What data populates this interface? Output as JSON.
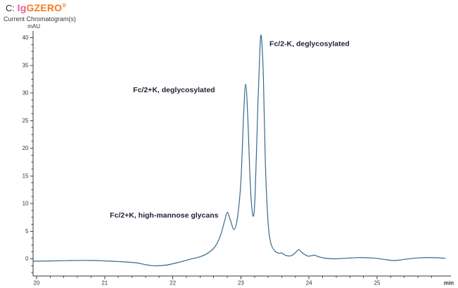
{
  "header": {
    "prefix": "C:",
    "logo": {
      "part1": "Ig",
      "part2": "GZERO",
      "reg": "®"
    },
    "subtitle": "Current Chromatogram(s)"
  },
  "colors": {
    "curve": "#35698c",
    "axis": "#3a3a3a",
    "tick_label": "#333333",
    "annotation": "#1d2433",
    "logo_pink": "#ee59a1",
    "logo_orange": "#f47b20"
  },
  "chart_data": {
    "type": "line",
    "title": "Current Chromatogram(s)",
    "y_unit_label": "mAU",
    "x_unit_label": "min",
    "xlim": [
      20,
      26.05
    ],
    "ylim": [
      -3.1,
      41.2
    ],
    "x_major_ticks": [
      20,
      21,
      22,
      23,
      24,
      25
    ],
    "x_minor_step": 0.2,
    "y_major_ticks": [
      0,
      5,
      10,
      15,
      20,
      25,
      30,
      35,
      40
    ],
    "y_minor_step": 1.25,
    "grid": false,
    "legend": "none",
    "series": [
      {
        "name": "Current Chromatogram",
        "color": "#35698c",
        "points": [
          [
            19.95,
            -0.45
          ],
          [
            20.2,
            -0.4
          ],
          [
            20.5,
            -0.32
          ],
          [
            20.8,
            -0.3
          ],
          [
            21.0,
            -0.38
          ],
          [
            21.2,
            -0.5
          ],
          [
            21.45,
            -0.72
          ],
          [
            21.7,
            -1.25
          ],
          [
            21.9,
            -1.15
          ],
          [
            22.1,
            -0.6
          ],
          [
            22.25,
            -0.1
          ],
          [
            22.38,
            0.3
          ],
          [
            22.5,
            0.9
          ],
          [
            22.62,
            2.2
          ],
          [
            22.7,
            4.2
          ],
          [
            22.76,
            6.8
          ],
          [
            22.8,
            8.4
          ],
          [
            22.84,
            7.2
          ],
          [
            22.9,
            5.3
          ],
          [
            22.95,
            7.5
          ],
          [
            23.0,
            14.0
          ],
          [
            23.04,
            26.0
          ],
          [
            23.07,
            31.6
          ],
          [
            23.1,
            26.0
          ],
          [
            23.14,
            13.0
          ],
          [
            23.18,
            7.7
          ],
          [
            23.21,
            12.0
          ],
          [
            23.25,
            28.0
          ],
          [
            23.28,
            38.0
          ],
          [
            23.3,
            40.2
          ],
          [
            23.33,
            33.0
          ],
          [
            23.36,
            17.0
          ],
          [
            23.4,
            6.5
          ],
          [
            23.44,
            2.8
          ],
          [
            23.5,
            1.4
          ],
          [
            23.56,
            1.0
          ],
          [
            23.6,
            1.05
          ],
          [
            23.66,
            0.6
          ],
          [
            23.74,
            0.55
          ],
          [
            23.8,
            1.1
          ],
          [
            23.85,
            1.65
          ],
          [
            23.9,
            1.1
          ],
          [
            23.98,
            0.5
          ],
          [
            24.05,
            0.6
          ],
          [
            24.08,
            0.65
          ],
          [
            24.15,
            0.35
          ],
          [
            24.25,
            0.08
          ],
          [
            24.4,
            0.0
          ],
          [
            24.55,
            0.1
          ],
          [
            24.75,
            0.22
          ],
          [
            24.95,
            0.12
          ],
          [
            25.1,
            -0.1
          ],
          [
            25.25,
            -0.32
          ],
          [
            25.4,
            -0.1
          ],
          [
            25.6,
            0.15
          ],
          [
            25.8,
            0.22
          ],
          [
            26.0,
            0.1
          ]
        ]
      }
    ],
    "annotations": [
      {
        "text": "Fc/2+K, high-mannose glycans",
        "x": 22.67,
        "y": 7.8,
        "anchor": "end"
      },
      {
        "text": "Fc/2+K, deglycosylated",
        "x": 22.62,
        "y": 30.5,
        "anchor": "end"
      },
      {
        "text": "Fc/2-K, deglycosylated",
        "x": 23.42,
        "y": 38.8,
        "anchor": "start"
      }
    ]
  }
}
